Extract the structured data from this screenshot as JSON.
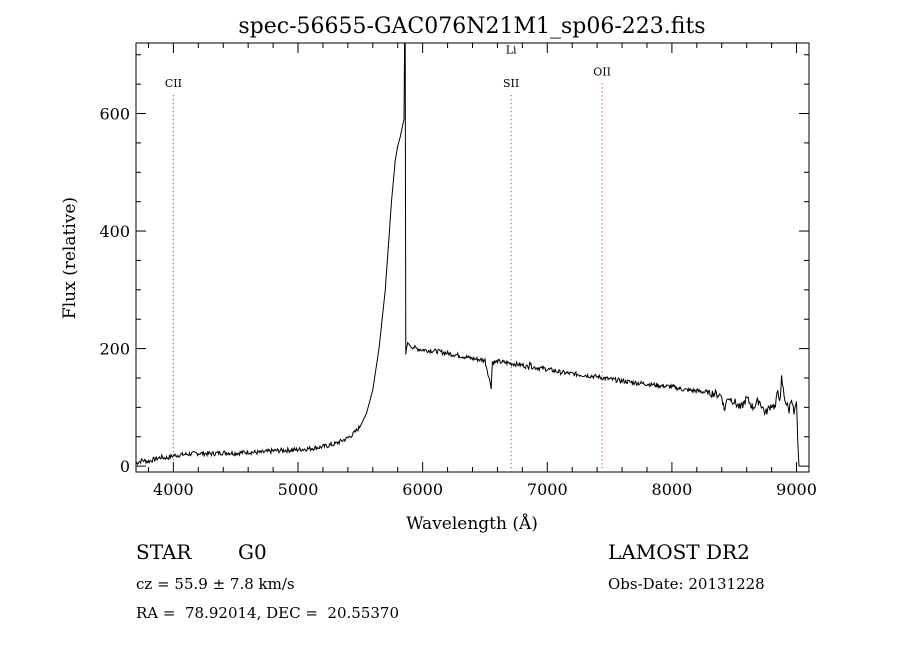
{
  "chart_data": {
    "type": "line",
    "title": "spec-56655-GAC076N21M1_sp06-223.fits",
    "xlabel": "Wavelength (Å)",
    "ylabel": "Flux (relative)",
    "xlim": [
      3700,
      9100
    ],
    "ylim": [
      -10,
      720
    ],
    "xticks": [
      4000,
      5000,
      6000,
      7000,
      8000,
      9000
    ],
    "yticks": [
      0,
      200,
      400,
      600
    ],
    "grid": false,
    "series": [
      {
        "x": [
          3700,
          3750,
          3800,
          3850,
          3900,
          3950,
          4000,
          4100,
          4200,
          4300,
          4400,
          4500,
          4600,
          4700,
          4800,
          4900,
          5000,
          5100,
          5200,
          5300,
          5400,
          5450,
          5500,
          5550,
          5600,
          5650,
          5700,
          5750,
          5780,
          5800,
          5820,
          5840,
          5850,
          5855,
          5860,
          5865,
          5870,
          5880,
          5900,
          5950,
          6000,
          6100,
          6200,
          6300,
          6400,
          6500,
          6550,
          6560,
          6570,
          6600,
          6700,
          6800,
          6850,
          6860,
          6870,
          6900,
          7000,
          7100,
          7200,
          7300,
          7400,
          7500,
          7600,
          7700,
          7800,
          7900,
          8000,
          8100,
          8200,
          8300,
          8350,
          8400,
          8420,
          8450,
          8500,
          8550,
          8600,
          8650,
          8700,
          8750,
          8800,
          8830,
          8850,
          8870,
          8880,
          8900,
          8920,
          8940,
          8960,
          8980,
          9000,
          9010,
          9020
        ],
        "y": [
          5,
          10,
          8,
          12,
          15,
          14,
          18,
          20,
          22,
          21,
          23,
          22,
          24,
          23,
          26,
          27,
          28,
          30,
          33,
          38,
          48,
          56,
          68,
          90,
          130,
          200,
          300,
          450,
          520,
          545,
          560,
          580,
          590,
          720,
          720,
          190,
          200,
          210,
          205,
          200,
          198,
          196,
          192,
          188,
          183,
          180,
          135,
          178,
          176,
          178,
          175,
          172,
          168,
          180,
          170,
          168,
          165,
          160,
          157,
          155,
          152,
          148,
          145,
          142,
          140,
          137,
          135,
          130,
          128,
          125,
          123,
          120,
          95,
          118,
          110,
          98,
          115,
          100,
          112,
          90,
          105,
          100,
          130,
          110,
          150,
          120,
          105,
          95,
          118,
          88,
          110,
          40,
          0
        ]
      }
    ],
    "lines": [
      {
        "label": "CII",
        "x": 4000,
        "label_y": 645
      },
      {
        "label": "SII",
        "x": 6710,
        "label_y": 645
      },
      {
        "label": "Li",
        "x": 6710,
        "label_y": 702
      },
      {
        "label": "OII",
        "x": 7440,
        "label_y": 665
      }
    ]
  },
  "info": {
    "object_class": "STAR",
    "subclass": "G0",
    "survey": "LAMOST DR2",
    "velocity": "cz = 55.9 ± 7.8 km/s",
    "obs_date": "Obs-Date: 20131228",
    "coords": "RA =  78.92014, DEC =  20.55370"
  },
  "colors": {
    "spectrum": "#000000",
    "line_marker": "#ff0000",
    "background": "#ffffff"
  }
}
